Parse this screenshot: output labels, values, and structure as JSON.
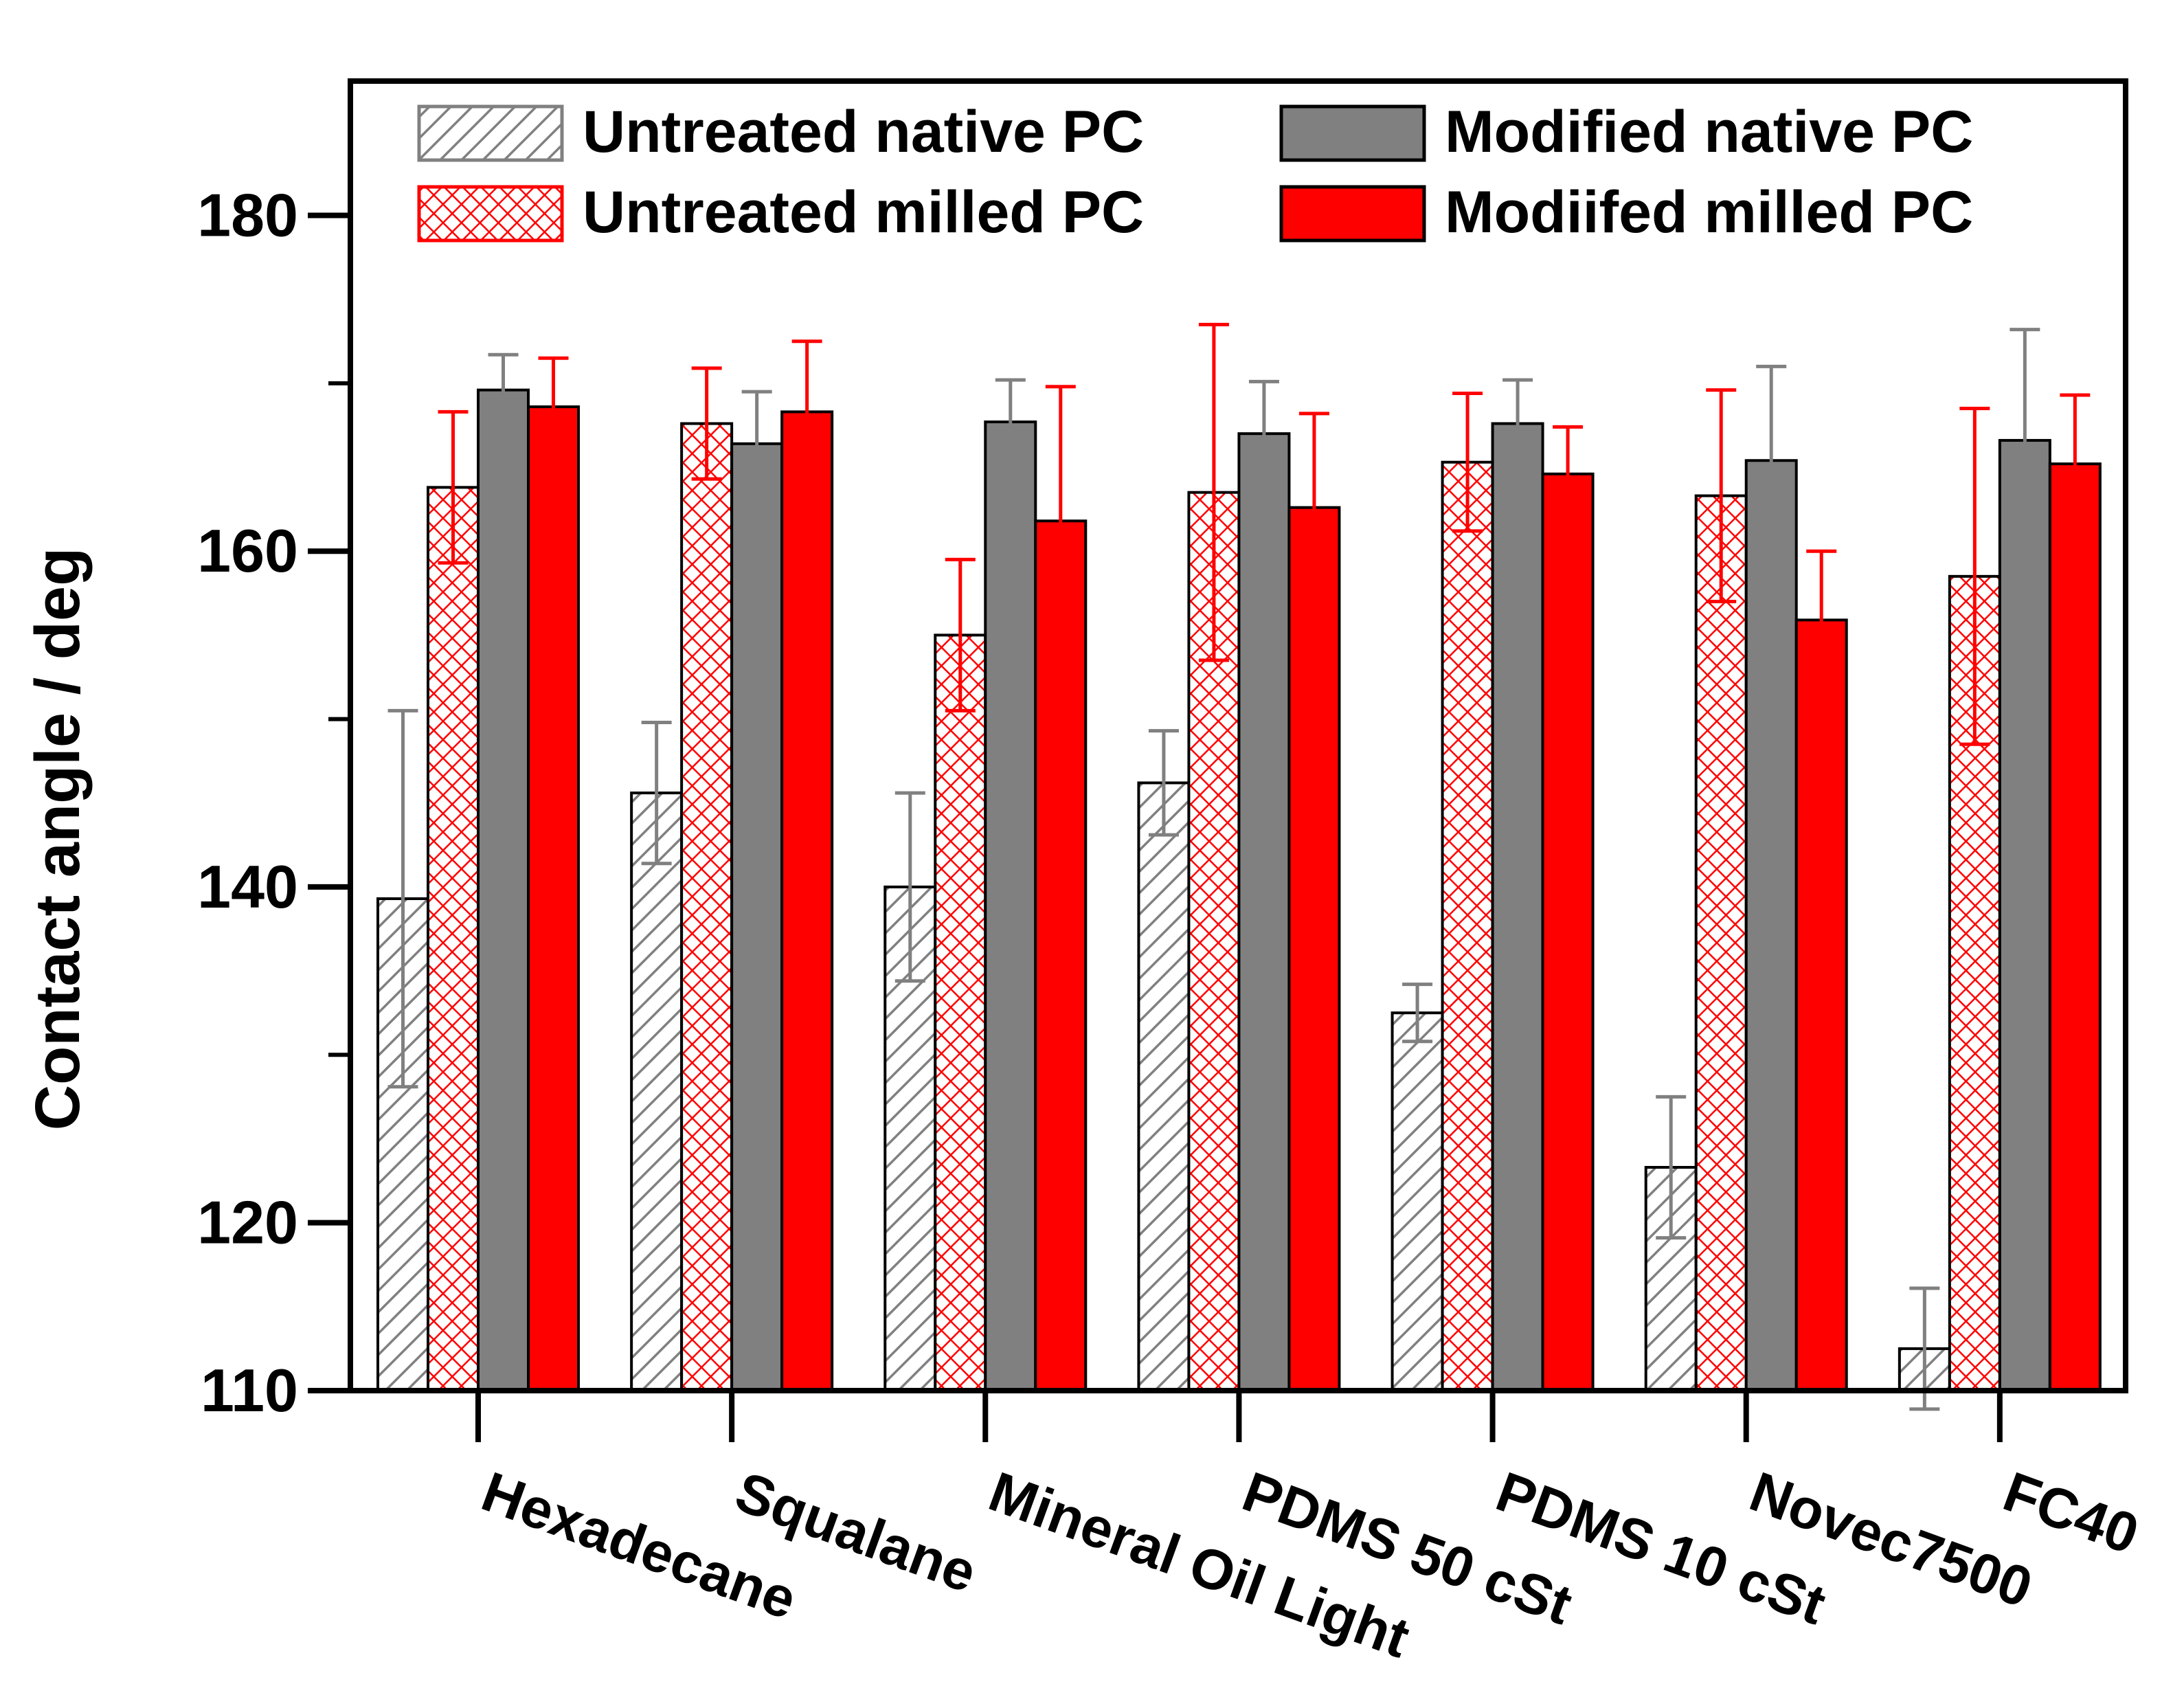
{
  "chart_data": {
    "type": "bar",
    "title": "",
    "xlabel": "",
    "ylabel": "Contact angle / deg",
    "ylim": [
      110,
      188
    ],
    "yticks": [
      110,
      120,
      140,
      160,
      180
    ],
    "legend_position": "top",
    "categories": [
      "Hexadecane",
      "Squalane",
      "Mineral Oil Light",
      "PDMS 50 cSt",
      "PDMS 10 cSt",
      "Novec7500",
      "FC40"
    ],
    "series": [
      {
        "name": "Untreated native PC",
        "color": "#808080",
        "pattern": "hatch",
        "values": [
          139.3,
          145.6,
          140.0,
          146.2,
          132.5,
          123.3,
          112.5
        ],
        "errors": [
          11.2,
          4.2,
          5.6,
          3.1,
          1.7,
          4.2,
          3.6
        ]
      },
      {
        "name": "Untreated milled PC",
        "color": "#ff0000",
        "pattern": "crosshatch",
        "values": [
          163.8,
          167.6,
          155.0,
          163.5,
          165.3,
          163.3,
          158.5
        ],
        "errors": [
          4.5,
          3.3,
          4.5,
          10.0,
          4.1,
          6.3,
          10.0
        ]
      },
      {
        "name": "Modified native PC",
        "color": "#808080",
        "pattern": "solid",
        "values": [
          169.6,
          166.4,
          167.7,
          167.0,
          167.6,
          165.4,
          166.6
        ],
        "errors": [
          2.1,
          3.1,
          2.5,
          3.1,
          2.6,
          5.6,
          6.6
        ]
      },
      {
        "name": "Modiifed milled PC",
        "color": "#ff0000",
        "pattern": "solid",
        "values": [
          168.6,
          168.3,
          161.8,
          162.6,
          164.6,
          155.9,
          165.2
        ],
        "errors": [
          2.9,
          4.2,
          8.0,
          5.6,
          2.8,
          4.1,
          4.1
        ]
      }
    ]
  }
}
